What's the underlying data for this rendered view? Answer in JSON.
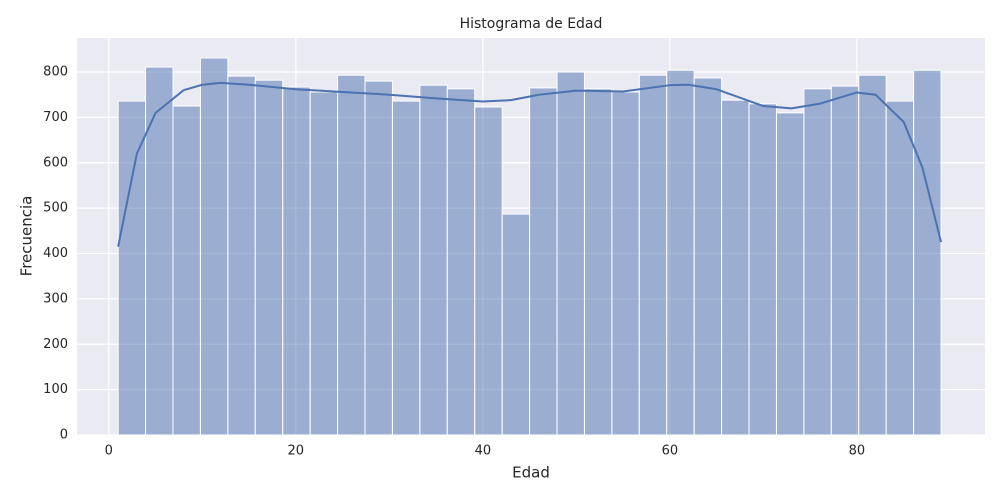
{
  "chart_data": {
    "type": "histogram",
    "title": "Histograma de Edad",
    "x_label": "Edad",
    "y_label": "Frecuencia",
    "bins": [
      1,
      3.9333,
      6.8667,
      9.8,
      12.7333,
      15.6667,
      18.6,
      21.5333,
      24.4667,
      27.4,
      30.3333,
      33.2667,
      36.2,
      39.1333,
      42.0667,
      45,
      47.9333,
      50.8667,
      53.8,
      56.7333,
      59.6667,
      62.6,
      65.5333,
      68.4667,
      71.4,
      74.3333,
      77.2667,
      80.2,
      83.1333,
      86.0667,
      89
    ],
    "values": [
      736,
      811,
      725,
      831,
      791,
      782,
      767,
      756,
      793,
      780,
      736,
      771,
      763,
      723,
      487,
      765,
      800,
      763,
      756,
      793,
      804,
      787,
      738,
      730,
      710,
      763,
      769,
      793,
      736,
      804
    ],
    "color": "#4c72b0",
    "kde": {
      "x": [
        1,
        3,
        5,
        8,
        10,
        12,
        15,
        20,
        25,
        30,
        35,
        40,
        43,
        46,
        50,
        55,
        60,
        62,
        65,
        70,
        73,
        76,
        80,
        82,
        85,
        87,
        89
      ],
      "values": [
        415,
        620,
        710,
        760,
        772,
        776,
        772,
        762,
        756,
        750,
        742,
        735,
        738,
        750,
        759,
        757,
        771,
        772,
        762,
        725,
        720,
        730,
        755,
        750,
        690,
        590,
        425
      ]
    },
    "xlim": [
      -3.4,
      93.7
    ],
    "ylim": [
      0,
      875
    ],
    "xticks": [
      0,
      20,
      40,
      60,
      80
    ],
    "yticks": [
      0,
      100,
      200,
      300,
      400,
      500,
      600,
      700,
      800
    ],
    "grid": true
  }
}
